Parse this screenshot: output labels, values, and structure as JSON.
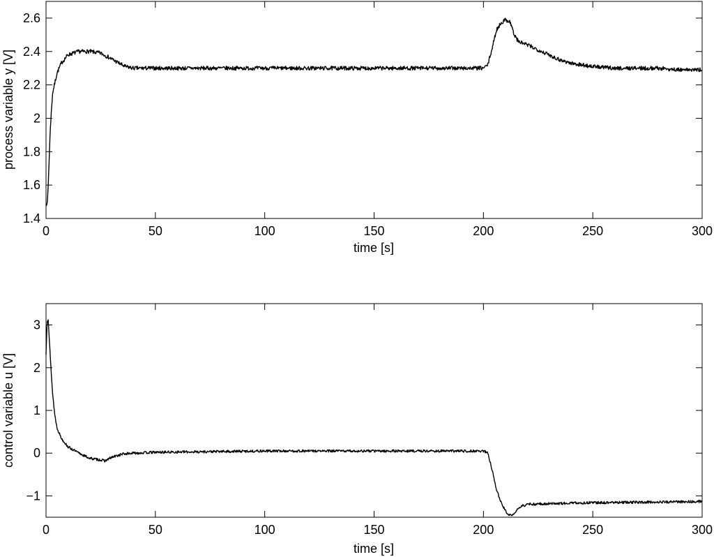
{
  "chart_data": [
    {
      "type": "line",
      "title": "",
      "xlabel": "time [s]",
      "ylabel": "process variable y [V]",
      "xlim": [
        0,
        300
      ],
      "ylim": [
        1.4,
        2.7
      ],
      "xticks": [
        0,
        50,
        100,
        150,
        200,
        250,
        300
      ],
      "xtick_labels": [
        "0",
        "50",
        "100",
        "150",
        "200",
        "250",
        "300"
      ],
      "yticks": [
        1.4,
        1.6,
        1.8,
        2.0,
        2.2,
        2.4,
        2.6
      ],
      "ytick_labels": [
        "1.4",
        "1.6",
        "1.8",
        "2",
        "2.2",
        "2.4",
        "2.6"
      ],
      "grid": false,
      "line_color": "#000000",
      "noise_amplitude": 0.012,
      "series": [
        {
          "x": [
            0,
            0.5,
            1,
            2,
            3,
            5,
            7,
            10,
            15,
            20,
            25,
            28,
            32,
            36,
            40,
            50,
            100,
            150,
            200,
            202,
            204,
            206,
            208,
            210,
            212,
            213,
            214,
            216,
            220,
            225,
            230,
            235,
            240,
            250,
            260,
            270,
            280,
            290,
            300
          ],
          "values": [
            1.5,
            1.47,
            1.6,
            1.95,
            2.15,
            2.27,
            2.33,
            2.38,
            2.4,
            2.4,
            2.39,
            2.37,
            2.34,
            2.31,
            2.3,
            2.3,
            2.3,
            2.3,
            2.3,
            2.32,
            2.42,
            2.53,
            2.57,
            2.59,
            2.58,
            2.55,
            2.5,
            2.46,
            2.44,
            2.41,
            2.38,
            2.35,
            2.33,
            2.31,
            2.3,
            2.3,
            2.3,
            2.29,
            2.29
          ]
        }
      ]
    },
    {
      "type": "line",
      "title": "",
      "xlabel": "time [s]",
      "ylabel": "control variable u [V]",
      "xlim": [
        0,
        300
      ],
      "ylim": [
        -1.5,
        3.5
      ],
      "xticks": [
        0,
        50,
        100,
        150,
        200,
        250,
        300
      ],
      "xtick_labels": [
        "0",
        "50",
        "100",
        "150",
        "200",
        "250",
        "300"
      ],
      "yticks": [
        -1,
        0,
        1,
        2,
        3
      ],
      "ytick_labels": [
        "−1",
        "0",
        "1",
        "2",
        "3"
      ],
      "grid": false,
      "line_color": "#000000",
      "noise_amplitude": 0.03,
      "series": [
        {
          "x": [
            0,
            0.5,
            1,
            2,
            3,
            4,
            5,
            7,
            10,
            15,
            20,
            25,
            27,
            30,
            35,
            40,
            50,
            100,
            150,
            200,
            202,
            204,
            206,
            208,
            210,
            212,
            213,
            215,
            217,
            220,
            230,
            250,
            270,
            290,
            300
          ],
          "values": [
            2.3,
            3.1,
            3.15,
            2.2,
            1.4,
            0.9,
            0.6,
            0.35,
            0.15,
            0.0,
            -0.12,
            -0.16,
            -0.18,
            -0.1,
            -0.02,
            0.0,
            0.02,
            0.05,
            0.05,
            0.05,
            0.0,
            -0.4,
            -0.85,
            -1.15,
            -1.35,
            -1.45,
            -1.48,
            -1.35,
            -1.25,
            -1.2,
            -1.18,
            -1.16,
            -1.15,
            -1.14,
            -1.13
          ]
        }
      ]
    }
  ]
}
